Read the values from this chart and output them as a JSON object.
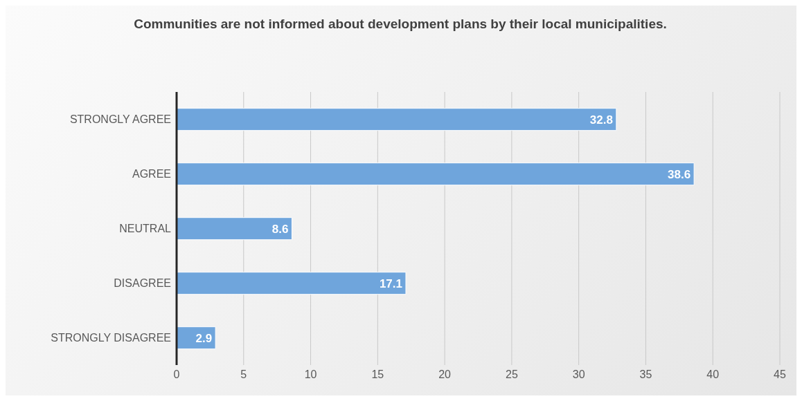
{
  "chart_data": {
    "type": "bar",
    "orientation": "horizontal",
    "title": "Communities are not informed about development plans by their local municipalities.",
    "categories": [
      "STRONGLY AGREE",
      "AGREE",
      "NEUTRAL",
      "DISAGREE",
      "STRONGLY DISAGREE"
    ],
    "values": [
      32.8,
      38.6,
      8.6,
      17.1,
      2.9
    ],
    "color": "#6fa5dc",
    "xlim": [
      0,
      45
    ],
    "xticks": [
      0,
      5,
      10,
      15,
      20,
      25,
      30,
      35,
      40,
      45
    ],
    "grid": "x",
    "data_labels": true
  }
}
